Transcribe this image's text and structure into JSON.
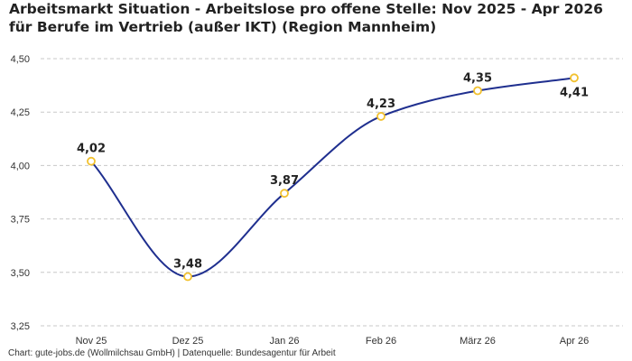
{
  "chart_data": {
    "type": "line",
    "title": "Arbeitsmarkt Situation - Arbeitslose pro offene Stelle: Nov 2025 - Apr 2026 für Berufe im Vertrieb (außer IKT) (Region Mannheim)",
    "categories": [
      "Nov 25",
      "Dez 25",
      "Jan 26",
      "Feb 26",
      "März 26",
      "Apr 26"
    ],
    "series": [
      {
        "values": [
          4.02,
          3.48,
          3.87,
          4.23,
          4.35,
          4.41
        ],
        "labels": [
          "4,02",
          "3,48",
          "3,87",
          "4,23",
          "4,35",
          "4,41"
        ]
      }
    ],
    "ylim": [
      3.25,
      4.5
    ],
    "yticks": [
      3.25,
      3.5,
      3.75,
      4.0,
      4.25,
      4.5
    ],
    "ytick_labels": [
      "3,25",
      "3,50",
      "3,75",
      "4,00",
      "4,25",
      "4,50"
    ],
    "grid": true,
    "line_color": "#1f2f8f",
    "marker_color": "#f2c12e"
  },
  "footer": "Chart: gute-jobs.de (Wollmilchsau GmbH) | Datenquelle: Bundesagentur für Arbeit"
}
